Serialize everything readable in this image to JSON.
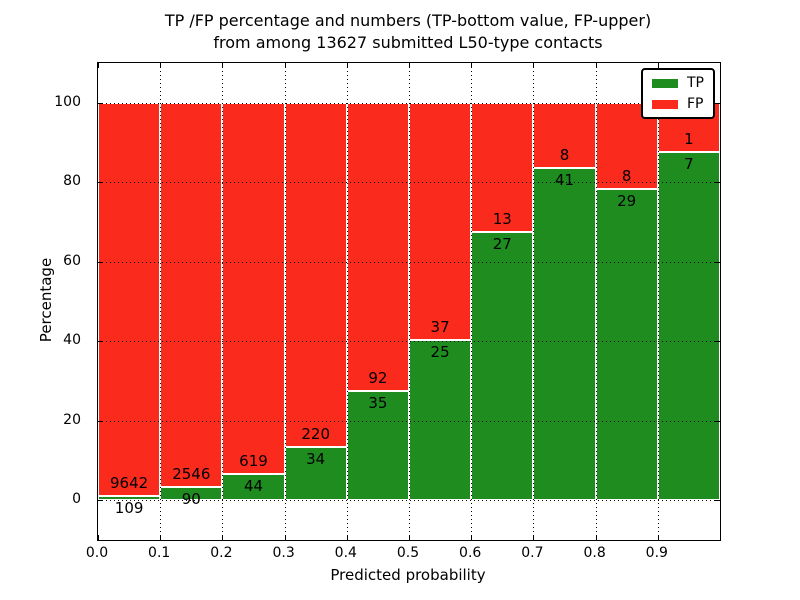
{
  "title": {
    "line1": "TP /FP percentage and numbers (TP-bottom value, FP-upper)",
    "line2": "from among 13627 submitted L50-type contacts"
  },
  "axes": {
    "xlabel": "Predicted probability",
    "ylabel": "Percentage"
  },
  "legend": {
    "position": "upper right",
    "items": [
      {
        "label": "TP",
        "color": "#1f8c1f"
      },
      {
        "label": "FP",
        "color": "#fa2a1c"
      }
    ]
  },
  "chart_data": {
    "type": "bar",
    "stacked": true,
    "normalized": "each bin scaled to 100%",
    "title": "TP /FP percentage and numbers (TP-bottom value, FP-upper) from among 13627 submitted L50-type contacts",
    "xlabel": "Predicted probability",
    "ylabel": "Percentage",
    "xlim": [
      0.0,
      1.0
    ],
    "ylim": [
      -10,
      110
    ],
    "grid": true,
    "grid_style": "dotted black",
    "bar_edge_color": "#ffffff",
    "background": "#ffffff",
    "legend_position": "upper right",
    "total_contacts": 13627,
    "bin_width": 0.1,
    "categories": [
      "0.0-0.1",
      "0.1-0.2",
      "0.2-0.3",
      "0.3-0.4",
      "0.4-0.5",
      "0.5-0.6",
      "0.6-0.7",
      "0.7-0.8",
      "0.8-0.9",
      "0.9-1.0"
    ],
    "xticks": [
      "0.0",
      "0.1",
      "0.2",
      "0.3",
      "0.4",
      "0.5",
      "0.6",
      "0.7",
      "0.8",
      "0.9"
    ],
    "yticks": [
      0,
      20,
      40,
      60,
      80,
      100
    ],
    "series": [
      {
        "name": "TP",
        "color": "#1f8c1f",
        "counts": [
          109,
          90,
          44,
          34,
          35,
          25,
          27,
          41,
          29,
          7
        ],
        "pct_approx": [
          1.1,
          3.4,
          6.6,
          13.4,
          27.6,
          40.3,
          67.5,
          83.7,
          78.4,
          87.5
        ]
      },
      {
        "name": "FP",
        "color": "#fa2a1c",
        "counts": [
          9642,
          2546,
          619,
          220,
          92,
          37,
          13,
          8,
          8,
          1
        ],
        "pct_approx": [
          98.9,
          96.6,
          93.4,
          86.6,
          72.4,
          59.7,
          32.5,
          16.3,
          21.6,
          12.5
        ]
      }
    ]
  }
}
